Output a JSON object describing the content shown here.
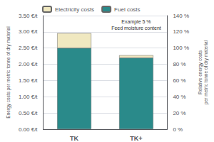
{
  "chart_data": {
    "type": "bar",
    "stacked": true,
    "categories": [
      "TK",
      "TK+"
    ],
    "series": [
      {
        "name": "Fuel costs",
        "color": "#2a8a8a",
        "values": [
          2.5,
          2.2
        ]
      },
      {
        "name": "Electricity costs",
        "color": "#f0e8c0",
        "values": [
          0.46,
          0.08
        ]
      }
    ],
    "ylim": [
      0,
      3.5
    ],
    "yticks": [
      {
        "value": 0.0,
        "label": "0.00 €/t"
      },
      {
        "value": 0.5,
        "label": "0.50 €/t"
      },
      {
        "value": 1.0,
        "label": "1.00 €/t"
      },
      {
        "value": 1.5,
        "label": "1.50 €/t"
      },
      {
        "value": 2.0,
        "label": "2.00 €/t"
      },
      {
        "value": 2.5,
        "label": "2.50 €/t"
      },
      {
        "value": 3.0,
        "label": "3.00 €/t"
      },
      {
        "value": 3.5,
        "label": "3.50 €/t"
      }
    ],
    "ylabel": "Energy costs per metric tonne of dry material",
    "y2lim": [
      0,
      140
    ],
    "y2ticks": [
      {
        "value": 0,
        "label": "0 %"
      },
      {
        "value": 20,
        "label": "20 %"
      },
      {
        "value": 40,
        "label": "40 %"
      },
      {
        "value": 60,
        "label": "60 %"
      },
      {
        "value": 80,
        "label": "80 %"
      },
      {
        "value": 100,
        "label": "100 %"
      },
      {
        "value": 120,
        "label": "120 %"
      },
      {
        "value": 140,
        "label": "140 %"
      }
    ],
    "y2label": "Relative energy costs\nper metric tonne of dry material",
    "annotation": "Example 5 %\nFeed moisture content",
    "grid": true,
    "legend": "upper left"
  }
}
